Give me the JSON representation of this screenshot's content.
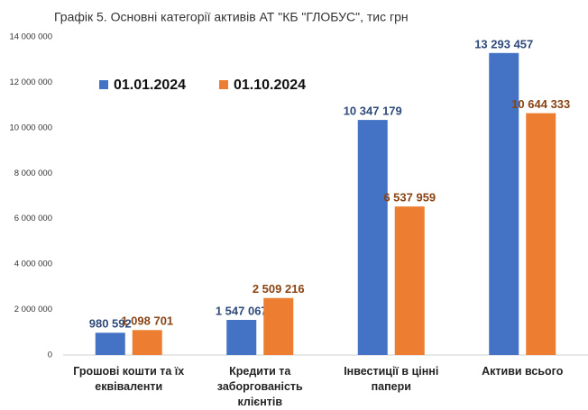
{
  "chart_data": {
    "type": "bar",
    "title": "Графік 5. Основні категорії активів АТ \"КБ \"ГЛОБУС\", тис грн",
    "categories": [
      "Грошові кошти та їх еквіваленти",
      "Кредити та заборгованість клієнтів",
      "Інвестиції в цінні папери",
      "Активи всього"
    ],
    "series": [
      {
        "name": "01.01.2024",
        "color": "#4472c4",
        "label_color": "#2f4a7a",
        "values": [
          980592,
          1547067,
          10347179,
          13293457
        ],
        "value_labels": [
          "980 592",
          "1 547 067",
          "10 347 179",
          "13 293 457"
        ]
      },
      {
        "name": "01.10.2024",
        "color": "#ed7d31",
        "label_color": "#8a4313",
        "values": [
          1098701,
          2509216,
          6537959,
          10644333
        ],
        "value_labels": [
          "1 098 701",
          "2 509 216",
          "6 537 959",
          "10 644 333"
        ]
      }
    ],
    "ylim": [
      0,
      14000000
    ],
    "yticks": [
      0,
      {
        "value": 2000000,
        "label": "2 000 000"
      },
      {
        "value": 4000000,
        "label": "4 000 000"
      },
      {
        "value": 6000000,
        "label": "6 000 000"
      },
      {
        "value": 8000000,
        "label": "8 000 000"
      },
      {
        "value": 10000000,
        "label": "10 000 000"
      },
      {
        "value": 12000000,
        "label": "12 000 000"
      },
      {
        "value": 14000000,
        "label": "14 000 000"
      }
    ],
    "grid": false,
    "legend": "top-left"
  }
}
